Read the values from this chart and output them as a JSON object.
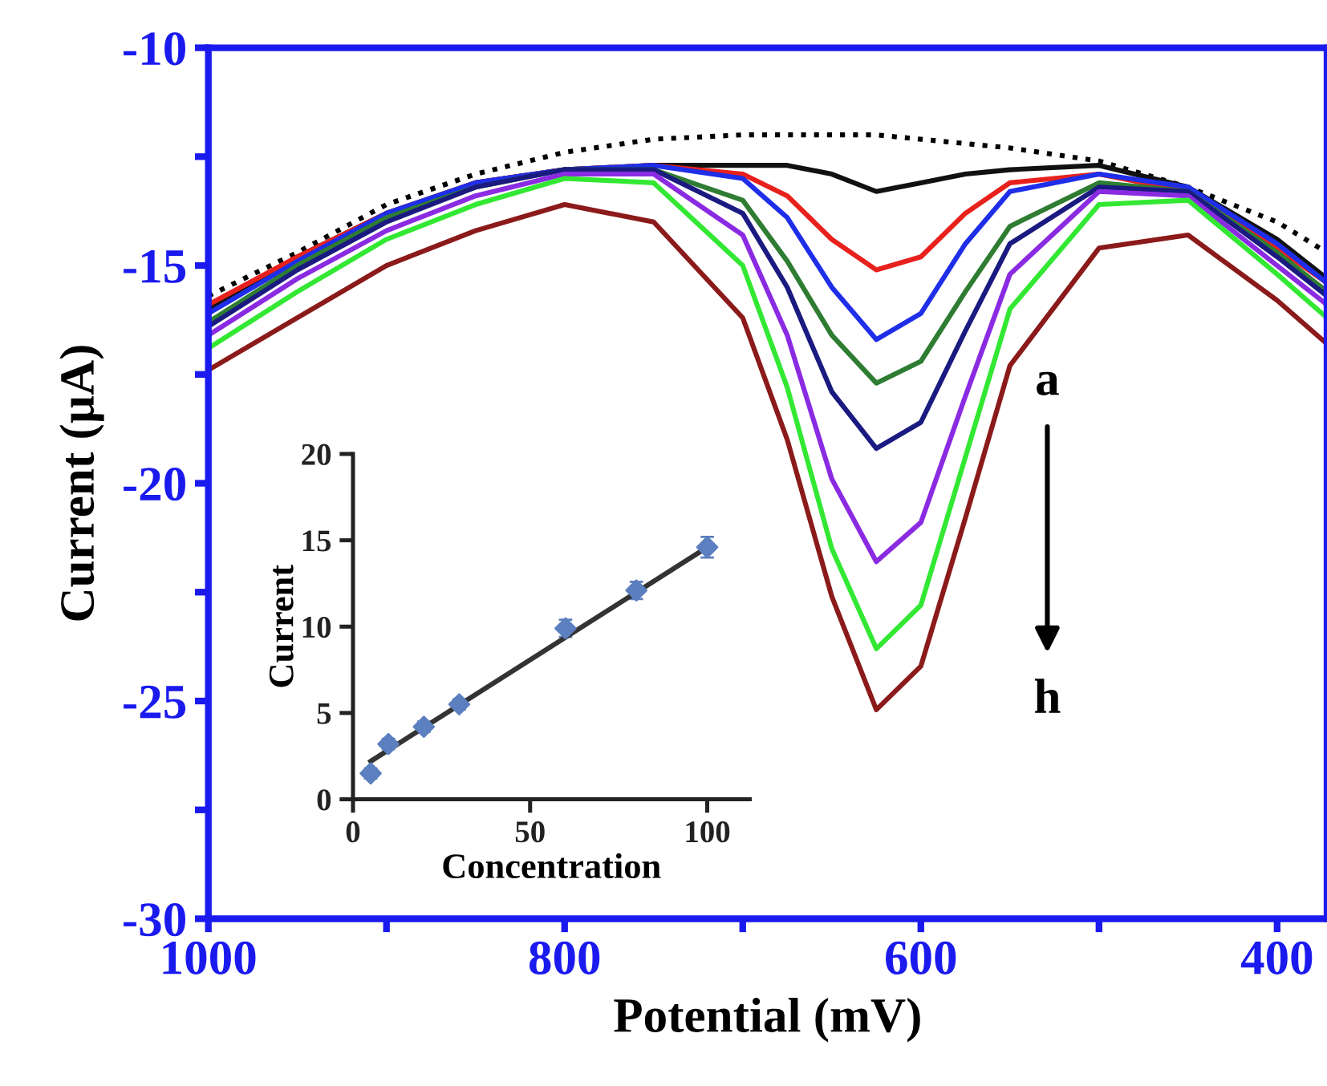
{
  "chart_data": [
    {
      "type": "line",
      "xlabel": "Potential (mV)",
      "ylabel": "Current (µA)",
      "x": [
        1000,
        950,
        900,
        850,
        800,
        750,
        700,
        675,
        650,
        625,
        600,
        575,
        550,
        500,
        450,
        400,
        372
      ],
      "series": [
        {
          "color": "#000000",
          "line_style": "dotted",
          "values": [
            -15.7,
            -14.7,
            -13.6,
            -12.9,
            -12.4,
            -12.1,
            -12.0,
            -12.0,
            -12.0,
            -12.0,
            -12.1,
            -12.2,
            -12.3,
            -12.6,
            -13.2,
            -14.0,
            -14.7
          ]
        },
        {
          "color": "#111111",
          "values": [
            -16.0,
            -14.8,
            -13.8,
            -13.1,
            -12.8,
            -12.7,
            -12.7,
            -12.7,
            -12.9,
            -13.3,
            -13.1,
            -12.9,
            -12.8,
            -12.7,
            -13.2,
            -14.4,
            -15.3
          ]
        },
        {
          "color": "#e8211d",
          "values": [
            -15.9,
            -14.8,
            -13.8,
            -13.1,
            -12.8,
            -12.7,
            -12.9,
            -13.4,
            -14.4,
            -15.1,
            -14.8,
            -13.8,
            -13.1,
            -12.9,
            -13.3,
            -14.6,
            -15.4
          ]
        },
        {
          "color": "#1f2ee8",
          "values": [
            -16.1,
            -14.9,
            -13.8,
            -13.1,
            -12.8,
            -12.7,
            -13.0,
            -13.9,
            -15.5,
            -16.7,
            -16.1,
            -14.5,
            -13.3,
            -12.9,
            -13.2,
            -14.5,
            -15.4
          ]
        },
        {
          "color": "#2e7d32",
          "values": [
            -16.3,
            -15.0,
            -13.9,
            -13.2,
            -12.8,
            -12.8,
            -13.5,
            -14.9,
            -16.6,
            -17.7,
            -17.2,
            -15.6,
            -14.1,
            -13.1,
            -13.3,
            -14.7,
            -15.6
          ]
        },
        {
          "color": "#1a1a80",
          "values": [
            -16.4,
            -15.1,
            -14.0,
            -13.2,
            -12.8,
            -12.8,
            -13.8,
            -15.5,
            -17.9,
            -19.2,
            -18.6,
            -16.5,
            -14.5,
            -13.2,
            -13.3,
            -14.8,
            -15.7
          ]
        },
        {
          "color": "#8a2be2",
          "values": [
            -16.6,
            -15.3,
            -14.2,
            -13.4,
            -12.9,
            -12.9,
            -14.3,
            -16.6,
            -19.9,
            -21.8,
            -20.9,
            -18.0,
            -15.2,
            -13.3,
            -13.4,
            -15.0,
            -15.9
          ]
        },
        {
          "color": "#33e833",
          "values": [
            -16.9,
            -15.6,
            -14.4,
            -13.6,
            -13.0,
            -13.1,
            -15.0,
            -17.8,
            -21.5,
            -23.8,
            -22.8,
            -19.4,
            -16.0,
            -13.6,
            -13.5,
            -15.2,
            -16.2
          ]
        },
        {
          "color": "#8b1a1a",
          "values": [
            -17.4,
            -16.2,
            -15.0,
            -14.2,
            -13.6,
            -14.0,
            -16.2,
            -19.0,
            -22.6,
            -25.2,
            -24.2,
            -20.8,
            -17.3,
            -14.6,
            -14.3,
            -15.8,
            -16.8
          ]
        }
      ],
      "xlim": [
        1000,
        372
      ],
      "xticks": [
        1000,
        {
          "value": 900,
          "label": null
        },
        800,
        {
          "value": 700,
          "label": null
        },
        600,
        {
          "value": 500,
          "label": null
        },
        400
      ],
      "ylim": [
        -30,
        -10
      ],
      "yticks": [
        -30,
        {
          "value": -27.5,
          "label": null
        },
        -25,
        {
          "value": -22.5,
          "label": null
        },
        -20,
        {
          "value": -17.5,
          "label": null
        },
        -15,
        {
          "value": -12.5,
          "label": null
        },
        -10
      ],
      "annotations": [
        "a",
        "h"
      ],
      "grid": false,
      "legend": false,
      "marker": "none"
    },
    {
      "type": "scatter",
      "xlabel": "Concentration",
      "ylabel": "Current",
      "series": [
        {
          "type": "scatter",
          "color": "#5b7fbf",
          "x": [
            5,
            10,
            20,
            30,
            60,
            80,
            100
          ],
          "values": [
            1.5,
            3.2,
            4.2,
            5.5,
            9.9,
            12.1,
            14.6
          ],
          "errors": [
            0.3,
            0.3,
            0.3,
            0.3,
            0.5,
            0.5,
            0.6
          ],
          "marker": "diamond"
        },
        {
          "type": "line",
          "color": "#333333",
          "x": [
            5,
            100
          ],
          "values": [
            2.2,
            14.6
          ]
        }
      ],
      "xlim": [
        0,
        112
      ],
      "xticks": [
        0,
        50,
        100
      ],
      "ylim": [
        0,
        20
      ],
      "yticks": [
        0,
        5,
        10,
        15,
        20
      ],
      "grid": false,
      "legend": false
    }
  ]
}
